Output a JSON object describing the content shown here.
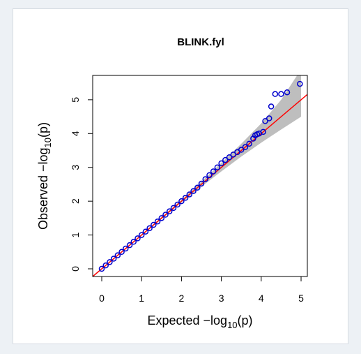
{
  "chart_data": {
    "type": "scatter",
    "title": "BLINK.fyl",
    "xlabel": {
      "text": "Expected  −log",
      "sub": "10",
      "end": "(p)"
    },
    "ylabel": {
      "text": "Observed  −log",
      "sub": "10",
      "end": "(p)"
    },
    "x": [
      0,
      0.1,
      0.2,
      0.3,
      0.4,
      0.5,
      0.6,
      0.7,
      0.8,
      0.9,
      1.0,
      1.1,
      1.2,
      1.3,
      1.4,
      1.5,
      1.6,
      1.7,
      1.8,
      1.9,
      2.0,
      2.1,
      2.2,
      2.3,
      2.4,
      2.5,
      2.6,
      2.7,
      2.8,
      2.9,
      3.0,
      3.1,
      3.2,
      3.3,
      3.4,
      3.5,
      3.6,
      3.7,
      3.8,
      3.85,
      3.9,
      3.95,
      4.05,
      4.1,
      4.2,
      4.25,
      4.35,
      4.5,
      4.65,
      4.97
    ],
    "y": [
      0,
      0.1,
      0.2,
      0.3,
      0.4,
      0.5,
      0.6,
      0.7,
      0.8,
      0.9,
      1.0,
      1.1,
      1.2,
      1.3,
      1.4,
      1.5,
      1.6,
      1.7,
      1.8,
      1.9,
      2.0,
      2.1,
      2.2,
      2.3,
      2.4,
      2.52,
      2.65,
      2.77,
      2.88,
      3.0,
      3.12,
      3.22,
      3.3,
      3.38,
      3.45,
      3.52,
      3.6,
      3.7,
      3.85,
      3.95,
      3.98,
      4.0,
      4.05,
      4.37,
      4.45,
      4.8,
      5.17,
      5.17,
      5.22,
      5.47
    ],
    "color": "#0000cd",
    "confidence_band": {
      "x": [
        0,
        1,
        2,
        2.5,
        3,
        3.5,
        4,
        4.5,
        5
      ],
      "lower": [
        0,
        0.98,
        1.96,
        2.43,
        2.88,
        3.32,
        3.73,
        4.12,
        4.5
      ],
      "upper": [
        0,
        1.02,
        2.04,
        2.58,
        3.13,
        3.7,
        4.3,
        5.0,
        5.9
      ],
      "color": "#bebebe"
    },
    "reference_line": {
      "slope": 1,
      "intercept": 0,
      "color": "#ff0000"
    },
    "xlim": [
      -0.227,
      5.157
    ],
    "ylim": [
      -0.227,
      5.72
    ],
    "xticks": [
      0,
      1,
      2,
      3,
      4,
      5
    ],
    "yticks": [
      0,
      1,
      2,
      3,
      4,
      5
    ]
  }
}
